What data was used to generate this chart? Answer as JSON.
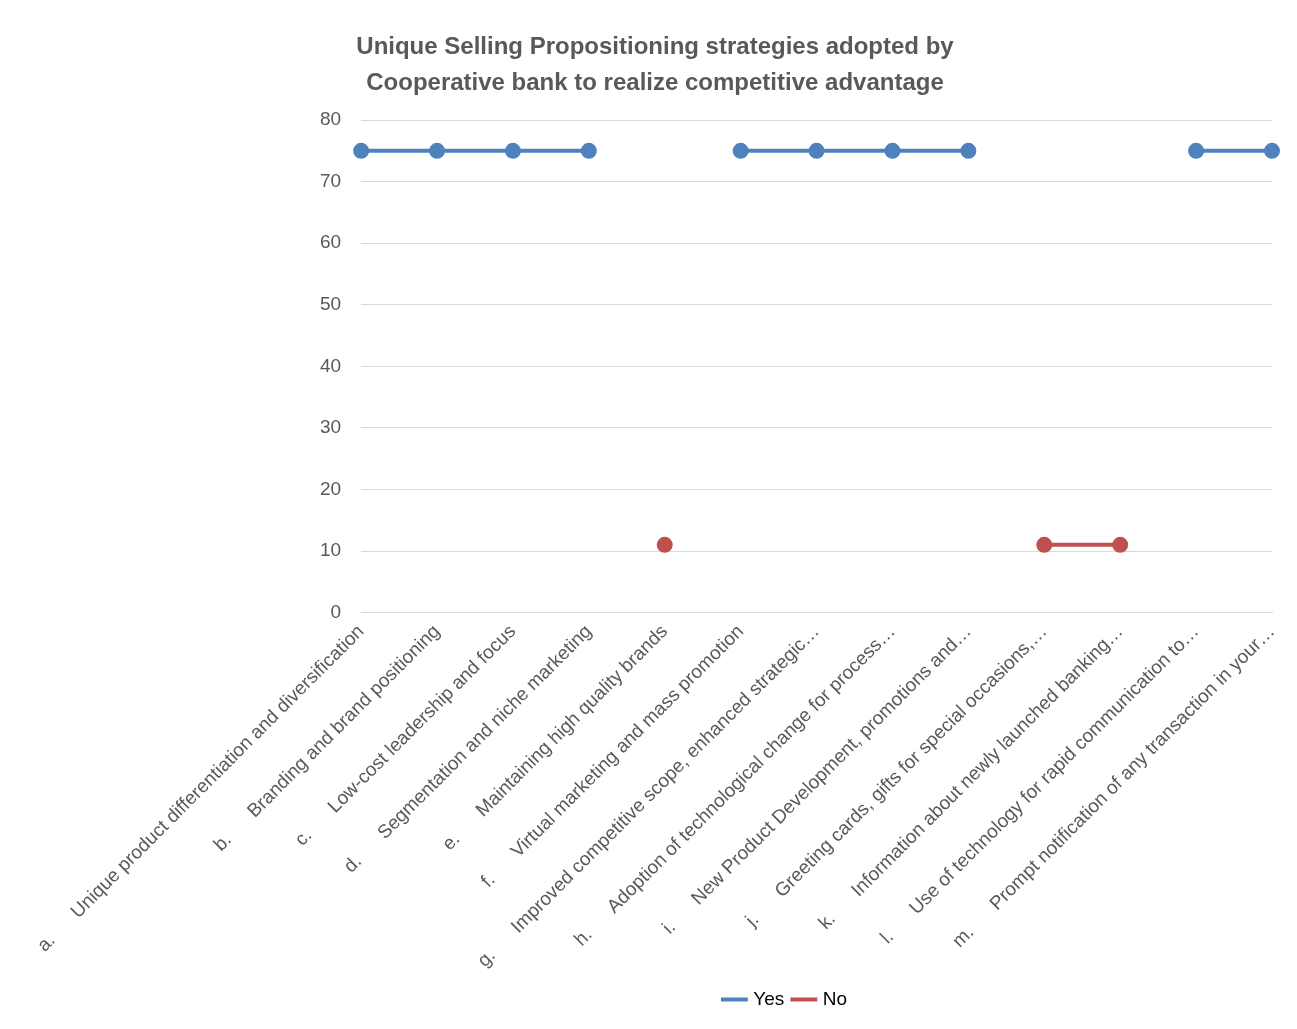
{
  "chart_data": {
    "type": "line",
    "title": "Unique Selling Propositioning strategies adopted by Cooperative bank to realize competitive advantage",
    "categories": [
      "a.      Unique product differentiation and diversification",
      "b.      Branding and brand positioning",
      "c.      Low-cost leadership and focus",
      "d.      Segmentation and niche marketing",
      "e.      Maintaining high quality brands",
      "f.      Virtual marketing and mass promotion",
      "g.      Improved competitive scope, enhanced strategic…",
      "h.      Adoption of technological change for process…",
      "i.      New Product Development, promotions and…",
      "j.      Greeting cards, gifts for special occasions,…",
      "k.      Information about newly launched banking…",
      "l.      Use of technology for rapid communication to…",
      "m.      Prompt notification of any transaction in your…"
    ],
    "series": [
      {
        "name": "Yes",
        "color": "#4f81bd",
        "values": [
          75,
          75,
          75,
          75,
          null,
          75,
          75,
          75,
          75,
          null,
          null,
          75,
          75
        ]
      },
      {
        "name": "No",
        "color": "#c0504d",
        "values": [
          null,
          null,
          null,
          null,
          11,
          null,
          null,
          null,
          null,
          11,
          11,
          null,
          null
        ]
      }
    ],
    "ylim": [
      0,
      80
    ],
    "yticks": [
      0,
      10,
      20,
      30,
      40,
      50,
      60,
      70,
      80
    ],
    "grid": "y",
    "legend": "bottom",
    "marker": "circle",
    "line_style": "solid"
  }
}
